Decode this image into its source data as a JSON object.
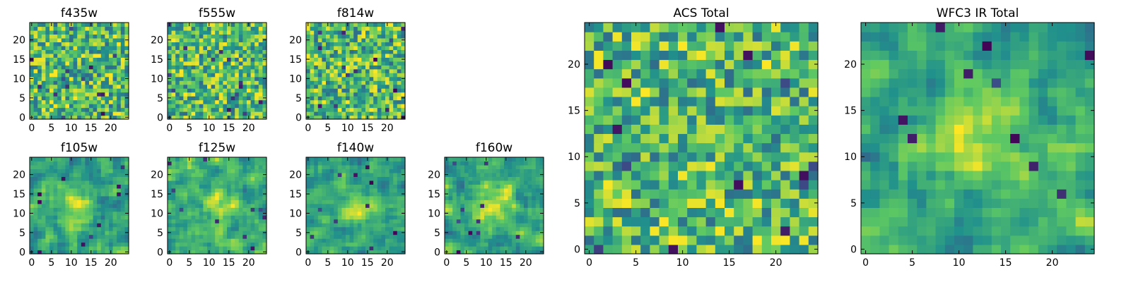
{
  "chart_data": [
    {
      "type": "heatmap",
      "title": "f435w",
      "xlim": [
        -0.5,
        24.5
      ],
      "ylim": [
        -0.5,
        24.5
      ],
      "xticks": [
        "0",
        "5",
        "10",
        "15",
        "20"
      ],
      "yticks": [
        "0",
        "5",
        "10",
        "15",
        "20"
      ],
      "grid_size": [
        25,
        25
      ],
      "colormap": "viridis",
      "values": "25x25 pixel grid, noise-like with values mostly in the upper (green-yellow) range"
    },
    {
      "type": "heatmap",
      "title": "f555w",
      "xlim": [
        -0.5,
        24.5
      ],
      "ylim": [
        -0.5,
        24.5
      ],
      "xticks": [
        "0",
        "5",
        "10",
        "15",
        "20"
      ],
      "yticks": [
        "0",
        "5",
        "10",
        "15",
        "20"
      ],
      "grid_size": [
        25,
        25
      ],
      "colormap": "viridis",
      "values": "25x25 pixel grid, noise-like with values mostly in the upper (green-yellow) range"
    },
    {
      "type": "heatmap",
      "title": "f814w",
      "xlim": [
        -0.5,
        24.5
      ],
      "ylim": [
        -0.5,
        24.5
      ],
      "xticks": [
        "0",
        "5",
        "10",
        "15",
        "20"
      ],
      "yticks": [
        "0",
        "5",
        "10",
        "15",
        "20"
      ],
      "grid_size": [
        25,
        25
      ],
      "colormap": "viridis",
      "values": "25x25 pixel grid, noise-like with values mostly in the upper (green-yellow) range"
    },
    {
      "type": "heatmap",
      "title": "f105w",
      "xlim": [
        -0.5,
        24.5
      ],
      "ylim": [
        -0.5,
        24.5
      ],
      "xticks": [
        "0",
        "5",
        "10",
        "15",
        "20"
      ],
      "yticks": [
        "0",
        "5",
        "10",
        "15",
        "20"
      ],
      "grid_size": [
        25,
        25
      ],
      "colormap": "viridis",
      "values": "25x25 pixel grid, smoother noise with scattered dark pixels"
    },
    {
      "type": "heatmap",
      "title": "f125w",
      "xlim": [
        -0.5,
        24.5
      ],
      "ylim": [
        -0.5,
        24.5
      ],
      "xticks": [
        "0",
        "5",
        "10",
        "15",
        "20"
      ],
      "yticks": [
        "0",
        "5",
        "10",
        "15",
        "20"
      ],
      "grid_size": [
        25,
        25
      ],
      "colormap": "viridis",
      "values": "25x25 pixel grid, smoother noise with brighter center"
    },
    {
      "type": "heatmap",
      "title": "f140w",
      "xlim": [
        -0.5,
        24.5
      ],
      "ylim": [
        -0.5,
        24.5
      ],
      "xticks": [
        "0",
        "5",
        "10",
        "15",
        "20"
      ],
      "yticks": [
        "0",
        "5",
        "10",
        "15",
        "20"
      ],
      "grid_size": [
        25,
        25
      ],
      "colormap": "viridis",
      "values": "25x25 pixel grid, smoother noise with brighter center"
    },
    {
      "type": "heatmap",
      "title": "f160w",
      "xlim": [
        -0.5,
        24.5
      ],
      "ylim": [
        -0.5,
        24.5
      ],
      "xticks": [
        "0",
        "5",
        "10",
        "15",
        "20"
      ],
      "yticks": [
        "0",
        "5",
        "10",
        "15",
        "20"
      ],
      "grid_size": [
        25,
        25
      ],
      "colormap": "viridis",
      "values": "25x25 pixel grid, smoother noise with brighter center"
    },
    {
      "type": "heatmap",
      "title": "ACS Total",
      "xlim": [
        -0.5,
        24.5
      ],
      "ylim": [
        -0.5,
        24.5
      ],
      "xticks": [
        "0",
        "5",
        "10",
        "15",
        "20"
      ],
      "yticks": [
        "0",
        "5",
        "10",
        "15",
        "20"
      ],
      "grid_size": [
        25,
        25
      ],
      "colormap": "viridis",
      "values": "25x25 pixel grid, noise-like with a few dark (low) pixels"
    },
    {
      "type": "heatmap",
      "title": "WFC3 IR Total",
      "xlim": [
        -0.5,
        24.5
      ],
      "ylim": [
        -0.5,
        24.5
      ],
      "xticks": [
        "0",
        "5",
        "10",
        "15",
        "20"
      ],
      "yticks": [
        "0",
        "5",
        "10",
        "15",
        "20"
      ],
      "grid_size": [
        25,
        25
      ],
      "colormap": "viridis",
      "values": "25x25 pixel grid, smoother field with a bright central source near (12, 12)"
    }
  ],
  "viridis_stops": [
    "#440154",
    "#3b528b",
    "#21918c",
    "#5ec962",
    "#fde725"
  ]
}
